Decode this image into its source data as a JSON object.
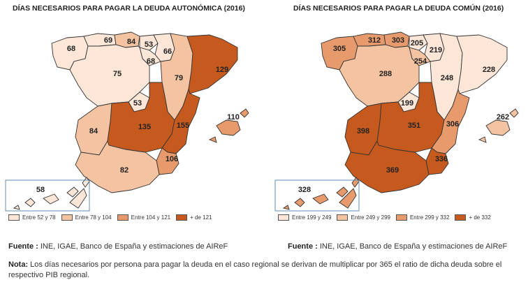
{
  "maps": [
    {
      "title": "DÍAS NECESARIOS PARA PAGAR LA DEUDA AUTONÓMICA (2016)",
      "values": {
        "galicia": "68",
        "asturias": "69",
        "cantabria": "84",
        "pais_vasco": "53",
        "navarra": "66",
        "la_rioja": "68",
        "castilla_leon": "75",
        "aragon": "79",
        "cataluna": "129",
        "madrid": "53",
        "extremadura": "84",
        "castilla_la_mancha": "135",
        "valencia": "155",
        "baleares": "110",
        "murcia": "106",
        "andalucia": "82",
        "canarias": "58"
      },
      "legend": [
        {
          "label": "Entre 52 y 78",
          "color": "#fbe6d8"
        },
        {
          "label": "Entre 78 y 104",
          "color": "#f3c3a2"
        },
        {
          "label": "Entre 104 y 121",
          "color": "#e79a6c"
        },
        {
          "label": "+ de 121",
          "color": "#c65a1e"
        }
      ],
      "source_label": "Fuente :",
      "source_text": "INE, IGAE, Banco de España y estimaciones de AIReF"
    },
    {
      "title": "DÍAS NECESARIOS PARA PAGAR LA DEUDA COMÚN (2016)",
      "values": {
        "galicia": "305",
        "asturias": "312",
        "cantabria": "303",
        "pais_vasco": "205",
        "navarra": "219",
        "la_rioja": "254",
        "castilla_leon": "288",
        "aragon": "248",
        "cataluna": "228",
        "madrid": "199",
        "extremadura": "398",
        "castilla_la_mancha": "351",
        "valencia": "306",
        "baleares": "262",
        "murcia": "336",
        "andalucia": "369",
        "canarias": "328"
      },
      "legend": [
        {
          "label": "Entre 199 y 249",
          "color": "#fbe6d8"
        },
        {
          "label": "Entre 249 y 299",
          "color": "#f3c3a2"
        },
        {
          "label": "Entre 299 y 332",
          "color": "#e79a6c"
        },
        {
          "label": "+ de 332",
          "color": "#c65a1e"
        }
      ],
      "source_label": "Fuente :",
      "source_text": "INE, IGAE, Banco de España y estimaciones de AIReF"
    }
  ],
  "note": {
    "label": "Nota:",
    "text": "Los días necesarios por persona para pagar la deuda en el caso regional se derivan de multiplicar por 365 el ratio de dicha deuda sobre el respectivo PIB regional."
  }
}
